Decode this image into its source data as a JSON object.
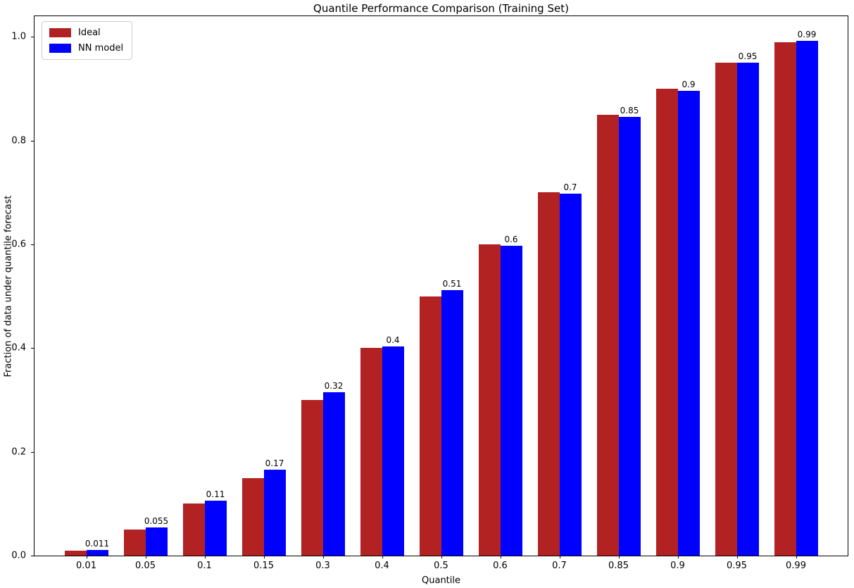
{
  "chart_data": {
    "type": "bar",
    "title": "Quantile Performance Comparison (Training Set)",
    "xlabel": "Quantile",
    "ylabel": "Fraction of data under quantile forecast",
    "categories": [
      "0.01",
      "0.05",
      "0.1",
      "0.15",
      "0.3",
      "0.4",
      "0.5",
      "0.6",
      "0.7",
      "0.85",
      "0.9",
      "0.95",
      "0.99"
    ],
    "series": [
      {
        "name": "Ideal",
        "color": "#b22222",
        "values": [
          0.01,
          0.05,
          0.1,
          0.15,
          0.3,
          0.4,
          0.5,
          0.6,
          0.7,
          0.85,
          0.9,
          0.95,
          0.99
        ]
      },
      {
        "name": "NN model",
        "color": "#0000ff",
        "values": [
          0.011,
          0.055,
          0.106,
          0.165,
          0.315,
          0.403,
          0.512,
          0.597,
          0.698,
          0.846,
          0.896,
          0.951,
          0.993
        ],
        "labels": [
          "0.011",
          "0.055",
          "0.11",
          "0.17",
          "0.32",
          "0.4",
          "0.51",
          "0.6",
          "0.7",
          "0.85",
          "0.9",
          "0.95",
          "0.99"
        ]
      }
    ],
    "yticks": [
      0.0,
      0.2,
      0.4,
      0.6,
      0.8,
      1.0
    ],
    "ytick_labels": [
      "0.0",
      "0.2",
      "0.4",
      "0.6",
      "0.8",
      "1.0"
    ],
    "ylim": [
      0,
      1.04
    ],
    "legend_position": "upper-left",
    "grid": false,
    "axis_color": "#000000",
    "background_color": "#ffffff"
  }
}
